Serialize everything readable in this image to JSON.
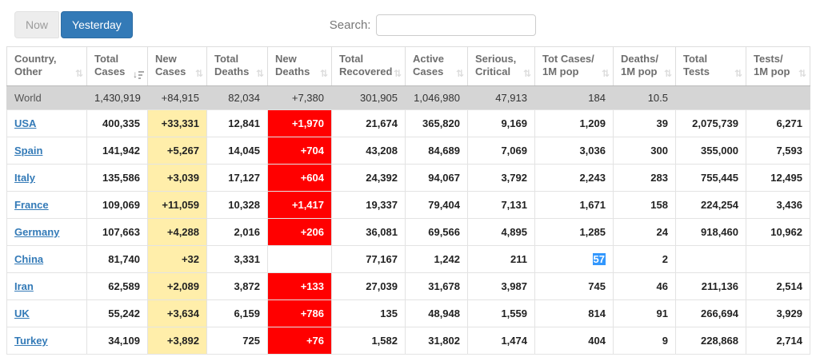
{
  "toolbar": {
    "now_label": "Now",
    "yesterday_label": "Yesterday",
    "search_label": "Search:",
    "search_value": "",
    "search_placeholder": ""
  },
  "colors": {
    "accent_blue": "#337ab7",
    "link_blue": "#337ab7",
    "new_cases_bg": "#FFEEAA",
    "new_deaths_bg": "#FF0000",
    "world_row_bg": "#D5D5D5",
    "text_selection_bg": "#3297FD"
  },
  "table": {
    "columns": [
      {
        "key": "country",
        "line1": "Country,",
        "line2": "Other",
        "sort": "inactive"
      },
      {
        "key": "total-cases",
        "line1": "Total",
        "line2": "Cases",
        "sort": "desc"
      },
      {
        "key": "new-cases",
        "line1": "New",
        "line2": "Cases",
        "sort": "inactive"
      },
      {
        "key": "total-deaths",
        "line1": "Total",
        "line2": "Deaths",
        "sort": "inactive"
      },
      {
        "key": "new-deaths",
        "line1": "New",
        "line2": "Deaths",
        "sort": "inactive"
      },
      {
        "key": "total-recovered",
        "line1": "Total",
        "line2": "Recovered",
        "sort": "inactive"
      },
      {
        "key": "active-cases",
        "line1": "Active",
        "line2": "Cases",
        "sort": "inactive"
      },
      {
        "key": "serious-critical",
        "line1": "Serious,",
        "line2": "Critical",
        "sort": "inactive"
      },
      {
        "key": "tot-cases-1m",
        "line1": "Tot Cases/",
        "line2": "1M pop",
        "sort": "inactive"
      },
      {
        "key": "deaths-1m",
        "line1": "Deaths/",
        "line2": "1M pop",
        "sort": "inactive"
      },
      {
        "key": "total-tests",
        "line1": "Total",
        "line2": "Tests",
        "sort": "inactive"
      },
      {
        "key": "tests-1m",
        "line1": "Tests/",
        "line2": "1M pop",
        "sort": "inactive"
      }
    ],
    "world_row": {
      "cells": [
        "World",
        "1,430,919",
        "+84,915",
        "82,034",
        "+7,380",
        "301,905",
        "1,046,980",
        "47,913",
        "184",
        "10.5",
        "",
        ""
      ]
    },
    "rows": [
      {
        "cells": [
          "USA",
          "400,335",
          "+33,331",
          "12,841",
          "+1,970",
          "21,674",
          "365,820",
          "9,169",
          "1,209",
          "39",
          "2,075,739",
          "6,271"
        ]
      },
      {
        "cells": [
          "Spain",
          "141,942",
          "+5,267",
          "14,045",
          "+704",
          "43,208",
          "84,689",
          "7,069",
          "3,036",
          "300",
          "355,000",
          "7,593"
        ]
      },
      {
        "cells": [
          "Italy",
          "135,586",
          "+3,039",
          "17,127",
          "+604",
          "24,392",
          "94,067",
          "3,792",
          "2,243",
          "283",
          "755,445",
          "12,495"
        ]
      },
      {
        "cells": [
          "France",
          "109,069",
          "+11,059",
          "10,328",
          "+1,417",
          "19,337",
          "79,404",
          "7,131",
          "1,671",
          "158",
          "224,254",
          "3,436"
        ]
      },
      {
        "cells": [
          "Germany",
          "107,663",
          "+4,288",
          "2,016",
          "+206",
          "36,081",
          "69,566",
          "4,895",
          "1,285",
          "24",
          "918,460",
          "10,962"
        ]
      },
      {
        "cells": [
          "China",
          "81,740",
          "+32",
          "3,331",
          "",
          "77,167",
          "1,242",
          "211",
          "57",
          "2",
          "",
          ""
        ],
        "selected_col": 8
      },
      {
        "cells": [
          "Iran",
          "62,589",
          "+2,089",
          "3,872",
          "+133",
          "27,039",
          "31,678",
          "3,987",
          "745",
          "46",
          "211,136",
          "2,514"
        ]
      },
      {
        "cells": [
          "UK",
          "55,242",
          "+3,634",
          "6,159",
          "+786",
          "135",
          "48,948",
          "1,559",
          "814",
          "91",
          "266,694",
          "3,929"
        ]
      },
      {
        "cells": [
          "Turkey",
          "34,109",
          "+3,892",
          "725",
          "+76",
          "1,582",
          "31,802",
          "1,474",
          "404",
          "9",
          "228,868",
          "2,714"
        ]
      }
    ]
  }
}
